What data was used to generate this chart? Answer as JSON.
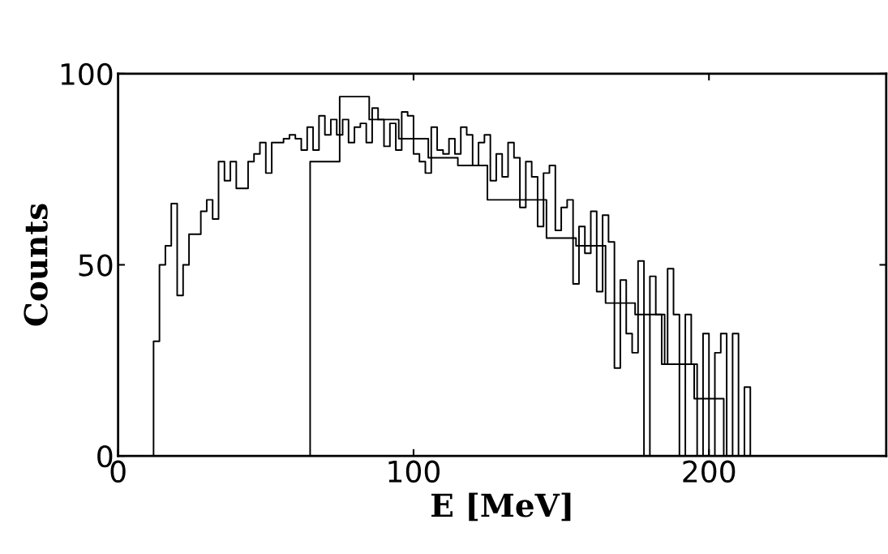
{
  "chart_data": {
    "type": "step",
    "xlabel": "E [MeV]",
    "ylabel": "Counts",
    "xlim": [
      0,
      260
    ],
    "ylim": [
      0,
      100
    ],
    "xticks": [
      0,
      100,
      200
    ],
    "yticks": [
      0,
      50,
      100
    ],
    "grid": false,
    "series": [
      {
        "color": "#000000",
        "x": [
          12,
          12,
          14,
          16,
          18,
          20,
          22,
          24,
          26,
          28,
          30,
          32,
          34,
          36,
          38,
          40,
          42,
          44,
          46,
          48,
          50,
          52,
          54,
          56,
          58,
          60,
          62,
          64,
          66,
          68,
          70,
          72,
          74,
          76,
          78,
          80,
          82,
          84,
          86,
          88,
          90,
          92,
          94,
          96,
          98,
          100,
          102,
          104,
          106,
          108,
          110,
          112,
          114,
          116,
          118,
          120,
          122,
          124,
          126,
          128,
          130,
          132,
          134,
          136,
          138,
          140,
          142,
          144,
          146,
          148,
          150,
          152,
          154,
          156,
          158,
          160,
          162,
          164,
          166,
          168,
          170,
          172,
          174,
          176,
          178,
          180,
          182,
          184,
          186,
          188,
          190,
          192,
          194,
          196,
          198,
          200,
          202,
          204,
          206,
          208,
          210,
          212,
          214
        ],
        "values": [
          0,
          30,
          50,
          55,
          66,
          42,
          50,
          58,
          58,
          64,
          67,
          62,
          77,
          72,
          77,
          70,
          70,
          77,
          79,
          82,
          74,
          82,
          82,
          83,
          84,
          83,
          80,
          86,
          80,
          89,
          84,
          88,
          84,
          88,
          82,
          86,
          87,
          82,
          91,
          88,
          81,
          87,
          80,
          90,
          89,
          79,
          77,
          74,
          86,
          80,
          79,
          83,
          79,
          86,
          84,
          76,
          82,
          84,
          72,
          79,
          73,
          82,
          78,
          65,
          77,
          73,
          60,
          74,
          76,
          59,
          65,
          67,
          45,
          60,
          53,
          64,
          43,
          63,
          56,
          23,
          46,
          32,
          27,
          51,
          0,
          47,
          37,
          24,
          49,
          37,
          0,
          37,
          24,
          0,
          32,
          0,
          27,
          32,
          0,
          32,
          0,
          18,
          0
        ]
      },
      {
        "color": "#000000",
        "x": [
          65,
          65,
          75,
          85,
          95,
          105,
          115,
          125,
          135,
          145,
          155,
          165,
          175,
          185,
          195,
          205
        ],
        "values": [
          0,
          77,
          94,
          88,
          83,
          78,
          76,
          67,
          67,
          57,
          55,
          40,
          37,
          24,
          15,
          0
        ]
      }
    ]
  }
}
